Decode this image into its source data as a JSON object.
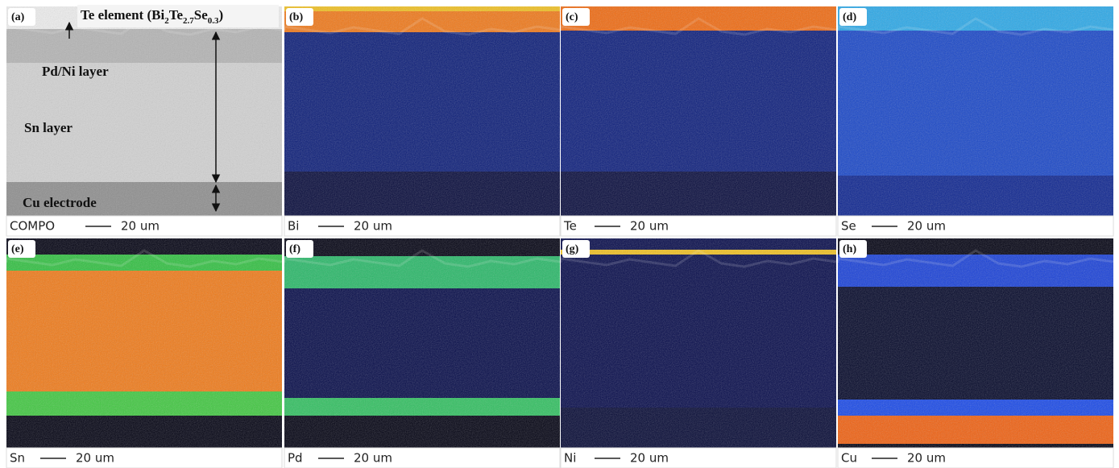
{
  "annotations": {
    "title_parts": [
      "Te element (Bi",
      "2",
      "Te",
      "2.7",
      "Se",
      "0.3",
      ")"
    ],
    "pd_ni": "Pd/Ni layer",
    "sn": "Sn layer",
    "cu": "Cu electrode"
  },
  "panels": [
    {
      "label": "(a)",
      "element": "COMPO",
      "scale": "20 um"
    },
    {
      "label": "(b)",
      "element": "Bi",
      "scale": "20 um"
    },
    {
      "label": "(c)",
      "element": "Te",
      "scale": "20 um"
    },
    {
      "label": "(d)",
      "element": "Se",
      "scale": "20 um"
    },
    {
      "label": "(e)",
      "element": "Sn",
      "scale": "20 um"
    },
    {
      "label": "(f)",
      "element": "Pd",
      "scale": "20 um"
    },
    {
      "label": "(g)",
      "element": "Ni",
      "scale": "20 um"
    },
    {
      "label": "(h)",
      "element": "Cu",
      "scale": "20 um"
    }
  ]
}
